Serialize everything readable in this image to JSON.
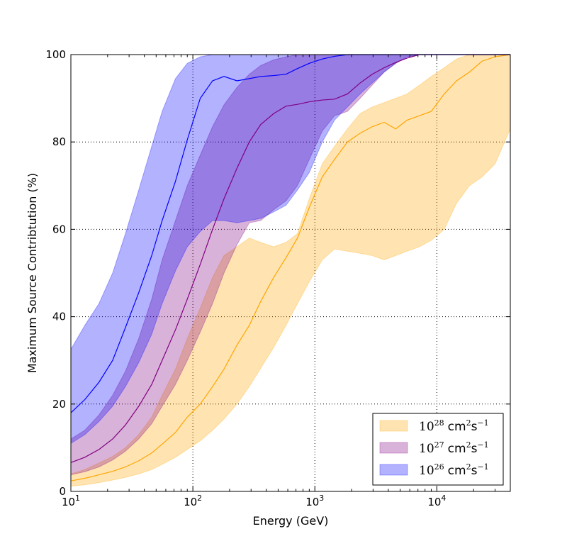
{
  "chart_data": {
    "type": "area",
    "title": "",
    "xlabel": "Energy (GeV)",
    "ylabel": "Maximum Source Contribtution (%)",
    "xscale": "log",
    "xlim": [
      10,
      40000
    ],
    "ylim": [
      0,
      100
    ],
    "grid": true,
    "legend_position": "bottom-right",
    "x_ticks": [
      {
        "value": 10,
        "base": "10",
        "exp": "1"
      },
      {
        "value": 100,
        "base": "10",
        "exp": "2"
      },
      {
        "value": 1000,
        "base": "10",
        "exp": "3"
      },
      {
        "value": 10000,
        "base": "10",
        "exp": "4"
      }
    ],
    "y_ticks": [
      0,
      20,
      40,
      60,
      80,
      100
    ],
    "series": [
      {
        "name": "10^28 cm^2 s^-1",
        "legend_base": "10",
        "legend_exp": "28",
        "legend_unit": "cm",
        "legend_unit_exp": "2",
        "legend_unit2": "s",
        "legend_unit2_exp": "−1",
        "line_color": "#ffa500",
        "fill_color": "#ffa500",
        "fill_opacity": 0.3,
        "x": [
          10,
          13,
          17,
          22,
          28,
          36,
          46,
          56,
          72,
          90,
          115,
          145,
          180,
          230,
          290,
          360,
          460,
          580,
          720,
          900,
          1150,
          1450,
          1850,
          2350,
          2950,
          3700,
          4600,
          5700,
          7200,
          9000,
          11500,
          14500,
          18500,
          23500,
          30000,
          40000
        ],
        "median": [
          2.4,
          3,
          3.8,
          4.6,
          5.6,
          7,
          8.8,
          10.8,
          13.5,
          17,
          20,
          24,
          28,
          33.5,
          38,
          43.5,
          49,
          53.5,
          58,
          65,
          72,
          76,
          80,
          82,
          83.5,
          84.5,
          83,
          85,
          86,
          87,
          91,
          94,
          96,
          98.5,
          99.5,
          100
        ],
        "lower": [
          1.2,
          1.5,
          2,
          2.6,
          3.2,
          4,
          5,
          6.2,
          7.8,
          9.6,
          11.6,
          14,
          16.6,
          20,
          24,
          28.2,
          33,
          38,
          43,
          48,
          53,
          55.5,
          55,
          54.5,
          54,
          53,
          54,
          55,
          56,
          57.5,
          60,
          66,
          70,
          72,
          75,
          83
        ],
        "upper": [
          4,
          5,
          6.5,
          8,
          10,
          13,
          17,
          22,
          28,
          35,
          42,
          49,
          54,
          56,
          58,
          57,
          56,
          57,
          59,
          67,
          75,
          79,
          83,
          86.5,
          88,
          89,
          90,
          91,
          93,
          95,
          97,
          99,
          100,
          100,
          100,
          100
        ]
      },
      {
        "name": "10^27 cm^2 s^-1",
        "legend_base": "10",
        "legend_exp": "27",
        "legend_unit": "cm",
        "legend_unit_exp": "2",
        "legend_unit2": "s",
        "legend_unit2_exp": "−1",
        "line_color": "#800080",
        "fill_color": "#800080",
        "fill_opacity": 0.3,
        "x": [
          10,
          13,
          17,
          22,
          28,
          36,
          46,
          56,
          72,
          90,
          115,
          145,
          180,
          230,
          290,
          360,
          460,
          580,
          720,
          900,
          1150,
          1450,
          1850,
          2350,
          2950,
          3700,
          4600,
          5700,
          7200,
          9000,
          11500,
          14500,
          18500,
          23500,
          30000,
          40000
        ],
        "median": [
          6.6,
          7.8,
          9.6,
          12,
          15.2,
          19.5,
          24.5,
          30,
          37,
          44,
          52,
          60,
          67,
          74,
          80,
          84,
          86.5,
          88.2,
          88.6,
          89.2,
          89.6,
          89.8,
          91,
          93.5,
          95.5,
          97,
          98.2,
          99.2,
          100,
          100,
          100,
          100,
          100,
          100,
          100,
          100
        ],
        "lower": [
          3.8,
          4.5,
          5.6,
          7.2,
          9.2,
          12,
          15.5,
          19.5,
          24.5,
          30,
          36.5,
          43,
          50,
          56.5,
          61.5,
          62,
          64.5,
          66.5,
          70,
          76,
          82.5,
          86,
          87,
          90,
          93,
          96,
          98,
          99.5,
          100,
          100,
          100,
          100,
          100,
          100,
          100,
          100
        ],
        "upper": [
          12,
          14,
          17.5,
          22,
          27.5,
          35,
          44,
          53,
          62,
          70,
          77,
          83.5,
          88.5,
          92.5,
          95.5,
          97.5,
          98.8,
          99.5,
          100,
          100,
          100,
          100,
          100,
          100,
          100,
          100,
          100,
          100,
          100,
          100,
          100,
          100,
          100,
          100,
          100,
          100
        ]
      },
      {
        "name": "10^26 cm^2 s^-1",
        "legend_base": "10",
        "legend_exp": "26",
        "legend_unit": "cm",
        "legend_unit_exp": "2",
        "legend_unit2": "s",
        "legend_unit2_exp": "−1",
        "line_color": "#0000ff",
        "fill_color": "#0000ff",
        "fill_opacity": 0.3,
        "x": [
          10,
          13,
          17,
          22,
          28,
          36,
          46,
          56,
          72,
          90,
          115,
          145,
          180,
          230,
          290,
          360,
          460,
          580,
          720,
          900,
          1150,
          1450,
          1850,
          2350,
          2950,
          3700,
          4600,
          5700,
          7200,
          9000,
          11500,
          14500,
          18500,
          23500,
          30000,
          40000
        ],
        "median": [
          18,
          21,
          25,
          30,
          37.5,
          45.5,
          54,
          62,
          71,
          80.5,
          90,
          94,
          95,
          94,
          94.5,
          95,
          95.2,
          95.5,
          96.8,
          98,
          99,
          99.6,
          100,
          100,
          100,
          100,
          100,
          100,
          100,
          100,
          100,
          100,
          100,
          100,
          100,
          100
        ],
        "lower": [
          11,
          13,
          16,
          19.5,
          24,
          29.5,
          36,
          43,
          50.5,
          56,
          59.5,
          62,
          62,
          61.5,
          62,
          62.5,
          64,
          65.5,
          69,
          73,
          80,
          85,
          88,
          91,
          93.5,
          96,
          98,
          99.5,
          100,
          100,
          100,
          100,
          100,
          100,
          100,
          100
        ],
        "upper": [
          32.5,
          38,
          43,
          50,
          59,
          69,
          79,
          87,
          94.5,
          98,
          99.5,
          100,
          100,
          100,
          100,
          100,
          100,
          100,
          100,
          100,
          100,
          100,
          100,
          100,
          100,
          100,
          100,
          100,
          100,
          100,
          100,
          100,
          100,
          100,
          100,
          100
        ]
      }
    ]
  }
}
